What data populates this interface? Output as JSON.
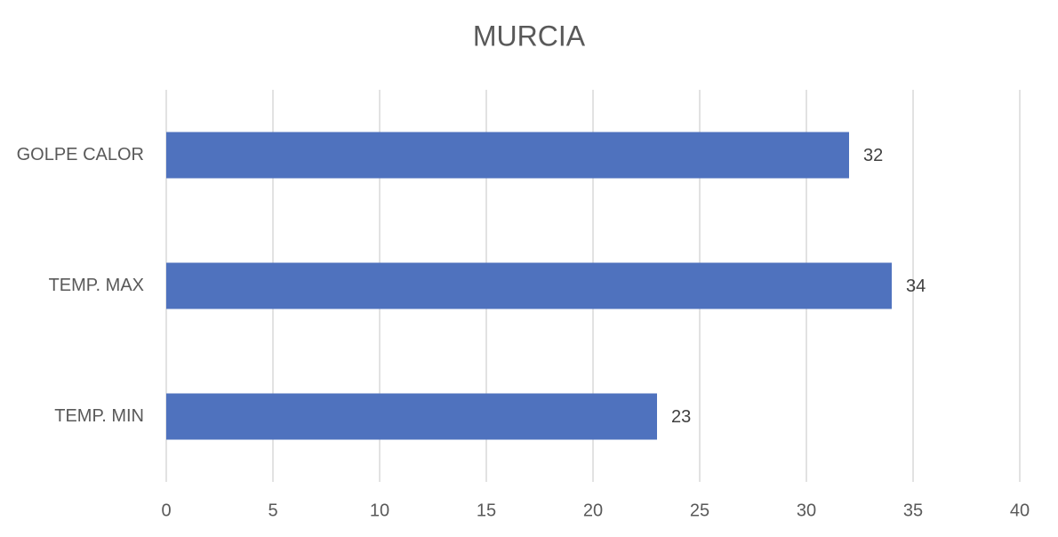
{
  "chart_data": {
    "type": "bar",
    "orientation": "horizontal",
    "title": "MURCIA",
    "categories": [
      "GOLPE CALOR",
      "TEMP. MAX",
      "TEMP. MIN"
    ],
    "values": [
      32,
      34,
      23
    ],
    "color": "#4f72be",
    "xlim": [
      0,
      40
    ],
    "xticks": [
      0,
      5,
      10,
      15,
      20,
      25,
      30,
      35,
      40
    ],
    "grid": true,
    "data_labels": true
  }
}
